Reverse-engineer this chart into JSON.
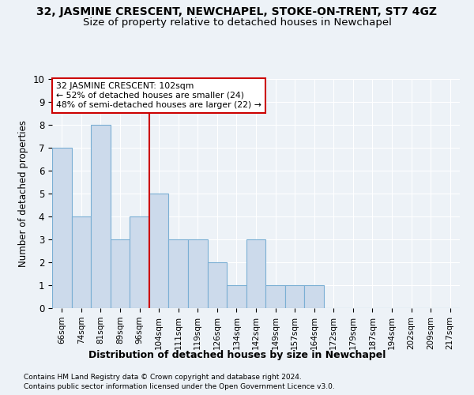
{
  "title": "32, JASMINE CRESCENT, NEWCHAPEL, STOKE-ON-TRENT, ST7 4GZ",
  "subtitle": "Size of property relative to detached houses in Newchapel",
  "xlabel": "Distribution of detached houses by size in Newchapel",
  "ylabel": "Number of detached properties",
  "categories": [
    "66sqm",
    "74sqm",
    "81sqm",
    "89sqm",
    "96sqm",
    "104sqm",
    "111sqm",
    "119sqm",
    "126sqm",
    "134sqm",
    "142sqm",
    "149sqm",
    "157sqm",
    "164sqm",
    "172sqm",
    "179sqm",
    "187sqm",
    "194sqm",
    "202sqm",
    "209sqm",
    "217sqm"
  ],
  "values": [
    7,
    4,
    8,
    3,
    4,
    5,
    3,
    3,
    2,
    1,
    3,
    1,
    1,
    1,
    0,
    0,
    0,
    0,
    0,
    0,
    0
  ],
  "bar_color": "#ccdaeb",
  "bar_edge_color": "#7bafd4",
  "annotation_line1": "32 JASMINE CRESCENT: 102sqm",
  "annotation_line2": "← 52% of detached houses are smaller (24)",
  "annotation_line3": "48% of semi-detached houses are larger (22) →",
  "annotation_box_color": "#ffffff",
  "annotation_box_edge": "#cc0000",
  "red_line_color": "#cc0000",
  "ylim": [
    0,
    10
  ],
  "yticks": [
    0,
    1,
    2,
    3,
    4,
    5,
    6,
    7,
    8,
    9,
    10
  ],
  "footer1": "Contains HM Land Registry data © Crown copyright and database right 2024.",
  "footer2": "Contains public sector information licensed under the Open Government Licence v3.0.",
  "background_color": "#edf2f7",
  "grid_color": "#ffffff",
  "title_fontsize": 10,
  "subtitle_fontsize": 9.5
}
